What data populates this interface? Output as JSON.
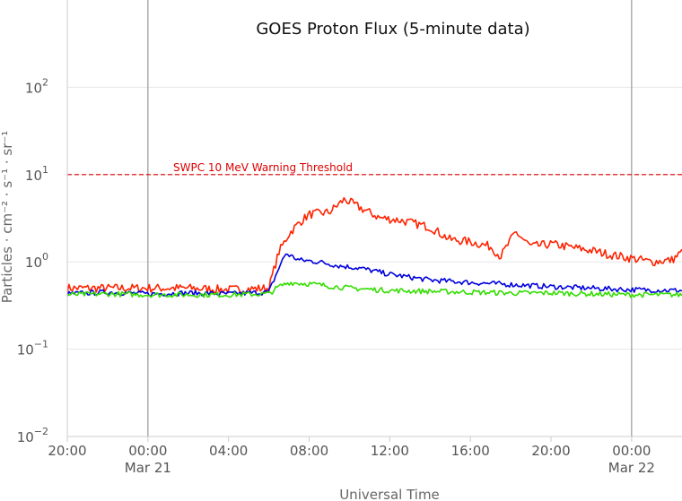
{
  "chart_data": {
    "type": "line",
    "title": "GOES Proton Flux (5-minute data)",
    "xlabel": "Universal Time",
    "ylabel": "Particles · cm⁻² · s⁻¹ · sr⁻¹",
    "y_scale": "log",
    "ylim": [
      0.01,
      1000
    ],
    "xlim": [
      "2024-03-20 20:00",
      "2024-03-22 02:30"
    ],
    "x_ticks": [
      {
        "x": "2024-03-20 20:00",
        "label": "20:00",
        "date_label": ""
      },
      {
        "x": "2024-03-21 00:00",
        "label": "00:00",
        "date_label": "Mar 21"
      },
      {
        "x": "2024-03-21 04:00",
        "label": "04:00",
        "date_label": ""
      },
      {
        "x": "2024-03-21 08:00",
        "label": "08:00",
        "date_label": ""
      },
      {
        "x": "2024-03-21 12:00",
        "label": "12:00",
        "date_label": ""
      },
      {
        "x": "2024-03-21 16:00",
        "label": "16:00",
        "date_label": ""
      },
      {
        "x": "2024-03-21 20:00",
        "label": "20:00",
        "date_label": ""
      },
      {
        "x": "2024-03-22 00:00",
        "label": "00:00",
        "date_label": "Mar 22"
      }
    ],
    "y_ticks": [
      {
        "value": 0.01,
        "base": "10",
        "exp": "−2"
      },
      {
        "value": 0.1,
        "base": "10",
        "exp": "−1"
      },
      {
        "value": 1,
        "base": "10",
        "exp": "0"
      },
      {
        "value": 10,
        "base": "10",
        "exp": "1"
      },
      {
        "value": 100,
        "base": "10",
        "exp": "2"
      }
    ],
    "day_boundaries": [
      "2024-03-21 00:00",
      "2024-03-22 00:00"
    ],
    "threshold": {
      "value": 10,
      "label": "SWPC 10 MeV Warning Threshold",
      "color": "#dd0000"
    },
    "grid": true,
    "legend": "none",
    "series": [
      {
        "color": "#ff2200",
        "x": [
          "2024-03-20 20:00",
          "2024-03-20 22:00",
          "2024-03-21 00:00",
          "2024-03-21 02:00",
          "2024-03-21 04:00",
          "2024-03-21 06:00",
          "2024-03-21 06:30",
          "2024-03-21 07:00",
          "2024-03-21 07:30",
          "2024-03-21 08:00",
          "2024-03-21 09:00",
          "2024-03-21 09:45",
          "2024-03-21 10:30",
          "2024-03-21 11:30",
          "2024-03-21 12:30",
          "2024-03-21 14:00",
          "2024-03-21 15:00",
          "2024-03-21 16:00",
          "2024-03-21 17:00",
          "2024-03-21 17:30",
          "2024-03-21 18:15",
          "2024-03-21 19:00",
          "2024-03-21 20:00",
          "2024-03-21 22:00",
          "2024-03-21 23:00",
          "2024-03-22 00:00",
          "2024-03-22 01:00",
          "2024-03-22 02:00",
          "2024-03-22 02:30"
        ],
        "y": [
          0.5,
          0.5,
          0.5,
          0.5,
          0.48,
          0.5,
          1.3,
          2.1,
          2.8,
          3.5,
          3.7,
          5.2,
          4.2,
          3.2,
          3.0,
          2.5,
          1.8,
          1.7,
          1.5,
          1.15,
          2.2,
          1.5,
          1.6,
          1.35,
          1.2,
          1.1,
          1.0,
          1.05,
          1.3
        ]
      },
      {
        "color": "#0000dd",
        "x": [
          "2024-03-20 20:00",
          "2024-03-20 22:00",
          "2024-03-21 00:00",
          "2024-03-21 02:00",
          "2024-03-21 04:00",
          "2024-03-21 06:00",
          "2024-03-21 06:30",
          "2024-03-21 06:50",
          "2024-03-21 07:30",
          "2024-03-21 08:30",
          "2024-03-21 09:30",
          "2024-03-21 10:30",
          "2024-03-21 12:00",
          "2024-03-21 14:00",
          "2024-03-21 16:00",
          "2024-03-21 18:00",
          "2024-03-21 20:00",
          "2024-03-21 22:00",
          "2024-03-22 00:00",
          "2024-03-22 02:30"
        ],
        "y": [
          0.43,
          0.45,
          0.43,
          0.44,
          0.43,
          0.45,
          0.85,
          1.25,
          1.05,
          1.0,
          0.9,
          0.85,
          0.72,
          0.62,
          0.58,
          0.55,
          0.52,
          0.5,
          0.48,
          0.47
        ]
      },
      {
        "color": "#33dd00",
        "x": [
          "2024-03-20 20:00",
          "2024-03-20 22:00",
          "2024-03-21 00:00",
          "2024-03-21 02:00",
          "2024-03-21 04:00",
          "2024-03-21 06:00",
          "2024-03-21 06:30",
          "2024-03-21 07:00",
          "2024-03-21 08:00",
          "2024-03-21 10:00",
          "2024-03-21 12:00",
          "2024-03-21 14:00",
          "2024-03-21 16:00",
          "2024-03-21 18:00",
          "2024-03-21 20:00",
          "2024-03-21 22:00",
          "2024-03-22 00:00",
          "2024-03-22 02:30"
        ],
        "y": [
          0.42,
          0.43,
          0.42,
          0.42,
          0.42,
          0.43,
          0.52,
          0.58,
          0.56,
          0.5,
          0.47,
          0.46,
          0.45,
          0.44,
          0.44,
          0.43,
          0.42,
          0.42
        ]
      }
    ]
  }
}
